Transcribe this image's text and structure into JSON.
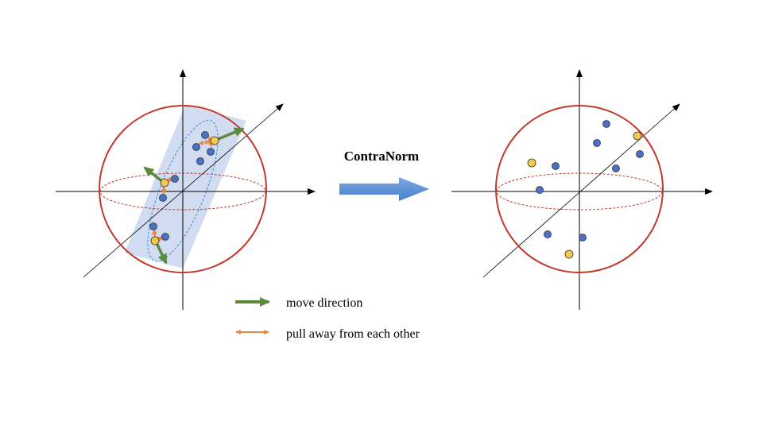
{
  "method_label": "ContraNorm",
  "legend": {
    "move": "move direction",
    "pull": "pull away from each other"
  },
  "colors": {
    "sphere": "#c0392b",
    "axis": "#000000",
    "plane_fill": "#b9c9ea",
    "ellipse_dash": "#3a8fd6",
    "point_blue": "#4a6fc6",
    "point_yellow": "#f2c94c",
    "move_arrow": "#5a8a3a",
    "pull_arrow": "#e8874a",
    "big_arrow": "#5b8fd6"
  }
}
